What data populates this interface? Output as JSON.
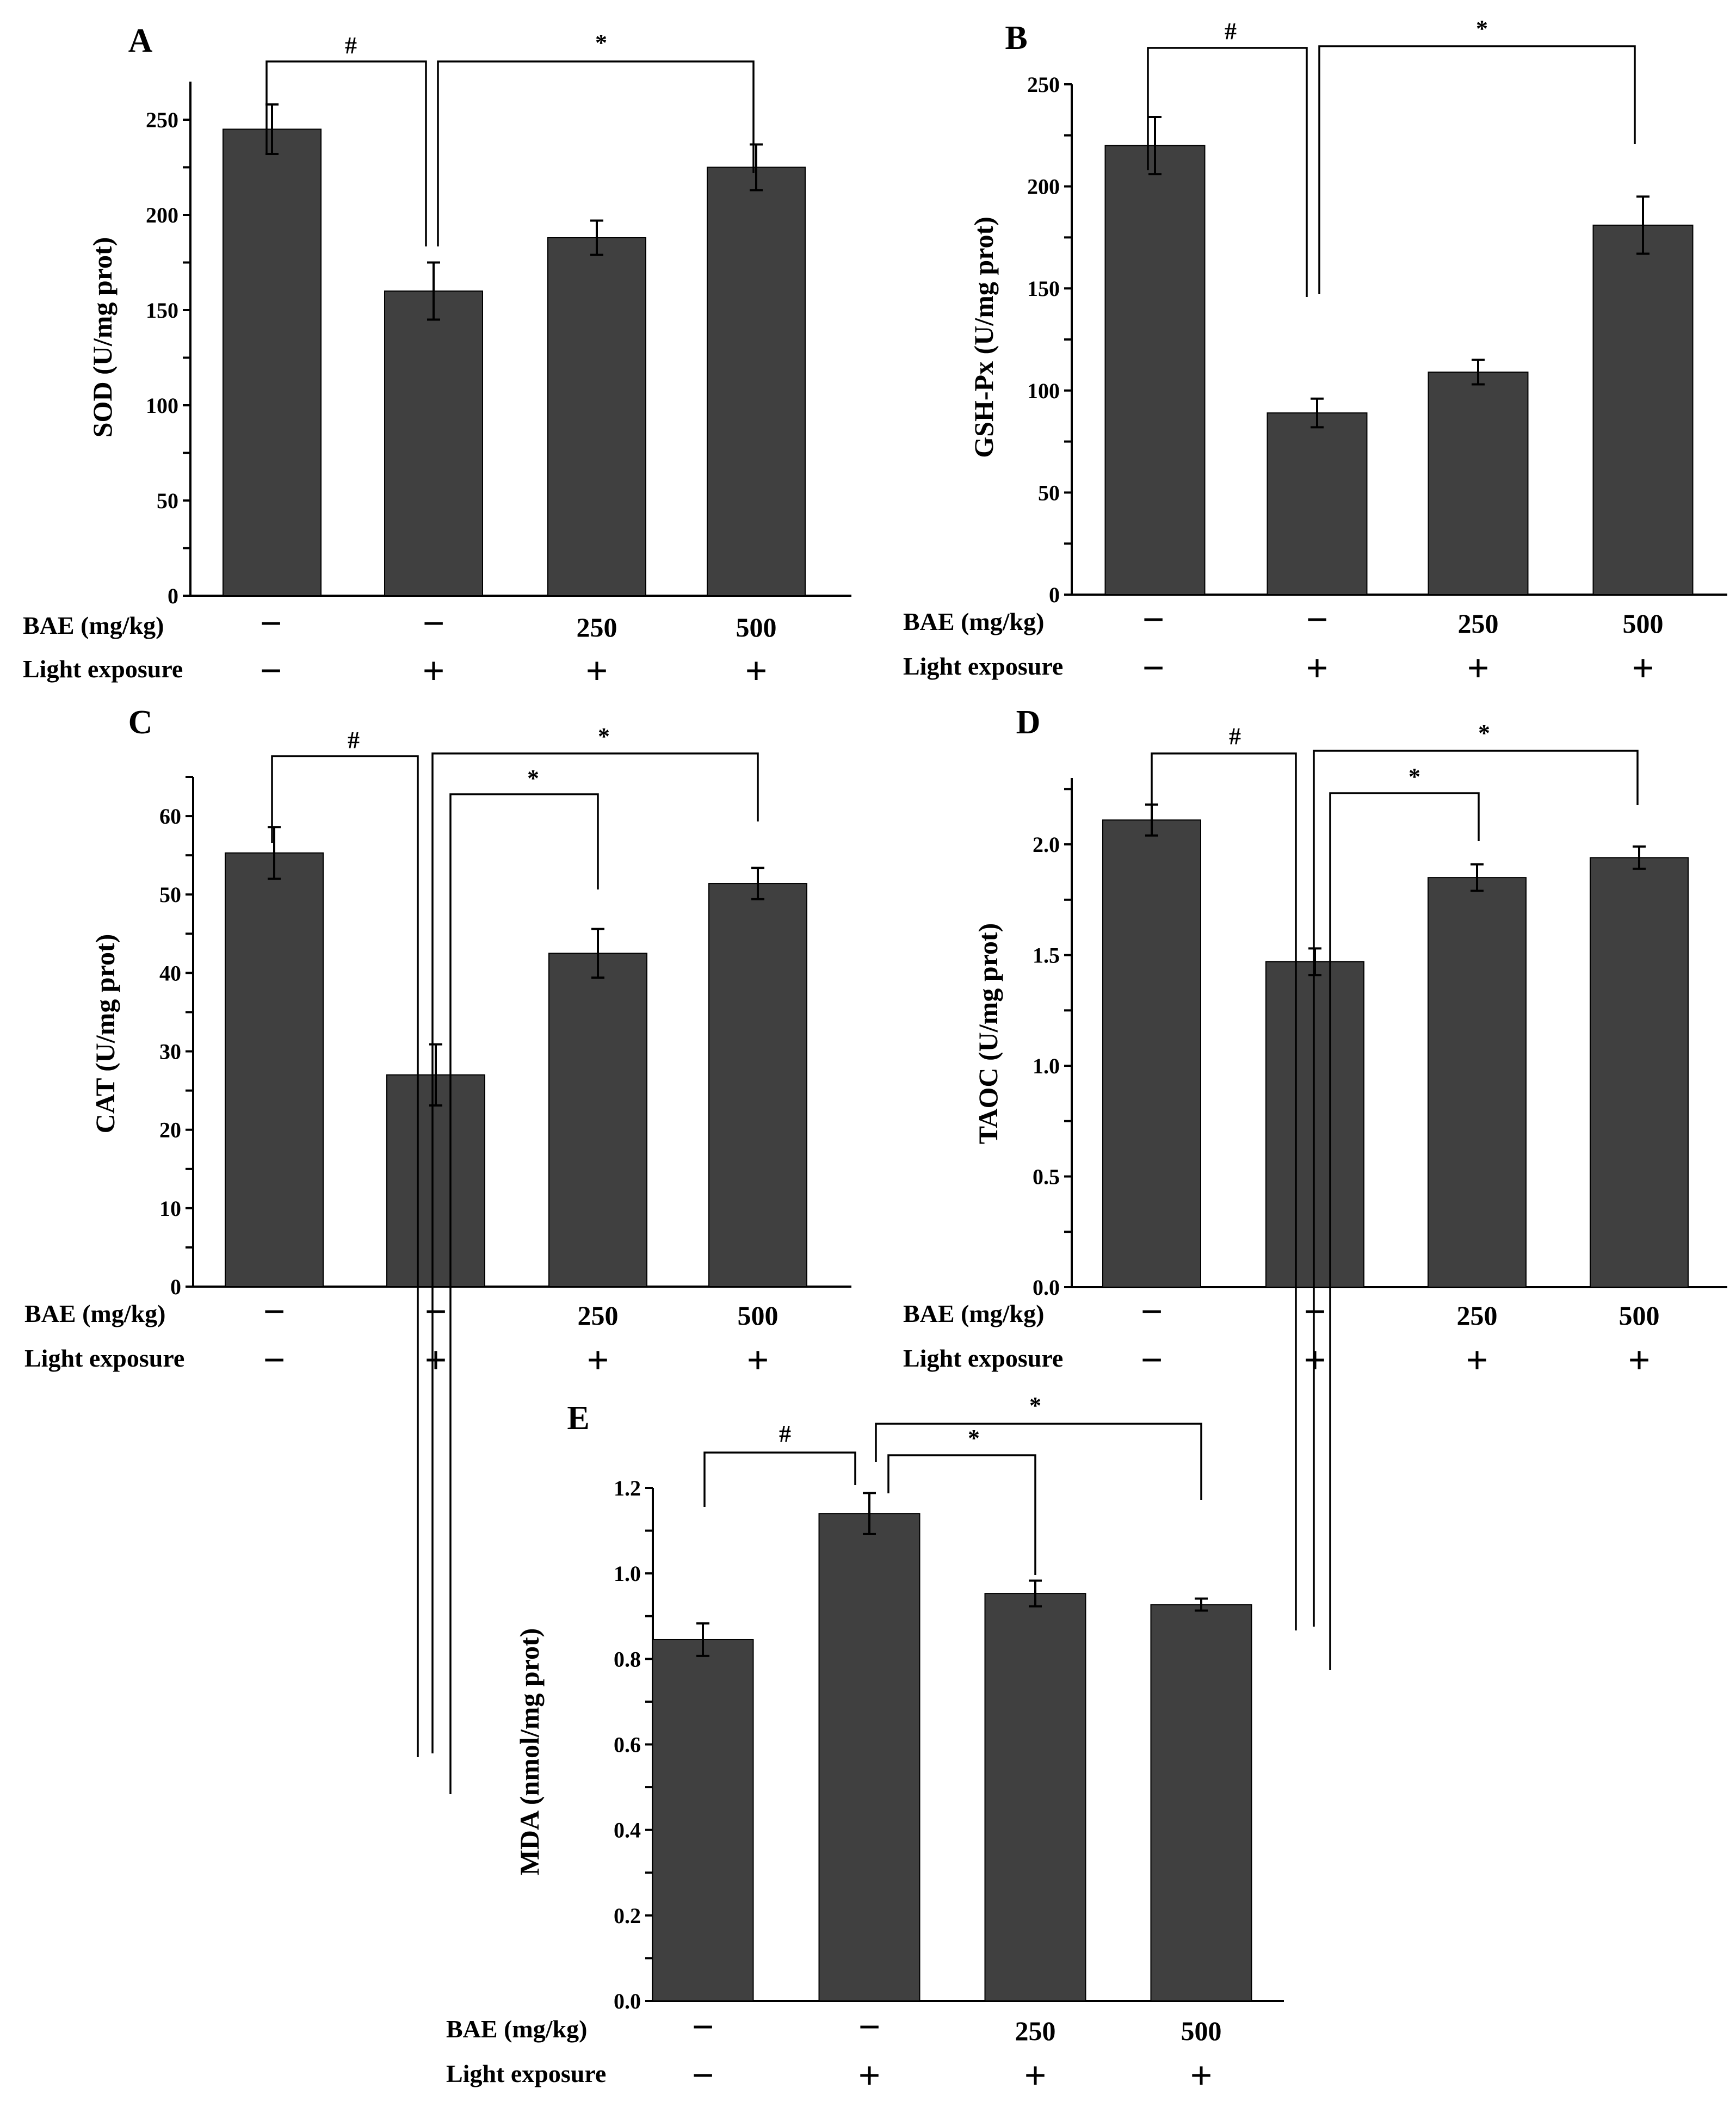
{
  "figure": {
    "row_labels": {
      "dose": "BAE (mg/kg)",
      "light": "Light exposure"
    },
    "group_dose": [
      "−",
      "−",
      "250",
      "500"
    ],
    "group_light": [
      "−",
      "+",
      "+",
      "+"
    ],
    "bar_color": "#404040"
  },
  "chart_data": [
    {
      "panel": "A",
      "type": "bar",
      "title": "",
      "xlabel": "",
      "ylabel": "SOD (U/mg prot)",
      "ylim": [
        0,
        270
      ],
      "yticks": [
        0,
        50,
        100,
        150,
        200,
        250
      ],
      "ytick_labels": [
        "0",
        "50",
        "100",
        "150",
        "200",
        "250"
      ],
      "values": [
        245,
        160,
        188,
        225
      ],
      "errors": [
        13,
        15,
        9,
        12
      ],
      "significance": [
        {
          "from": 0,
          "to": 1,
          "mark": "#"
        },
        {
          "from": 1,
          "to": 3,
          "mark": "*"
        }
      ]
    },
    {
      "panel": "B",
      "type": "bar",
      "title": "",
      "xlabel": "",
      "ylabel": "GSH-Px (U/mg prot)",
      "ylim": [
        0,
        250
      ],
      "yticks": [
        0,
        50,
        100,
        150,
        200,
        250
      ],
      "ytick_labels": [
        "0",
        "50",
        "100",
        "150",
        "200",
        "250"
      ],
      "values": [
        220,
        89,
        109,
        181
      ],
      "errors": [
        14,
        7,
        6,
        14
      ],
      "significance": [
        {
          "from": 0,
          "to": 1,
          "mark": "#"
        },
        {
          "from": 1,
          "to": 3,
          "mark": "*"
        }
      ]
    },
    {
      "panel": "C",
      "type": "bar",
      "title": "",
      "xlabel": "",
      "ylabel": "CAT (U/mg prot)",
      "ylim": [
        0,
        65
      ],
      "yticks": [
        0,
        10,
        20,
        30,
        40,
        50,
        60
      ],
      "ytick_labels": [
        "0",
        "10",
        "20",
        "30",
        "40",
        "50",
        "60"
      ],
      "values": [
        55.3,
        27.0,
        42.5,
        51.4
      ],
      "errors": [
        3.3,
        3.9,
        3.1,
        2.0
      ],
      "significance": [
        {
          "from": 0,
          "to": 1,
          "mark": "#"
        },
        {
          "from": 1,
          "to": 3,
          "mark": "*"
        },
        {
          "from": 1,
          "to": 2,
          "mark": "*"
        }
      ]
    },
    {
      "panel": "D",
      "type": "bar",
      "title": "",
      "xlabel": "",
      "ylabel": "TAOC (U/mg prot)",
      "ylim": [
        0,
        2.3
      ],
      "yticks": [
        0,
        0.5,
        1.0,
        1.5,
        2.0
      ],
      "ytick_labels": [
        "0.0",
        "0.5",
        "1.0",
        "1.5",
        "2.0"
      ],
      "values": [
        2.11,
        1.47,
        1.85,
        1.94
      ],
      "errors": [
        0.07,
        0.06,
        0.06,
        0.05
      ],
      "significance": [
        {
          "from": 0,
          "to": 1,
          "mark": "#"
        },
        {
          "from": 1,
          "to": 3,
          "mark": "*"
        },
        {
          "from": 1,
          "to": 2,
          "mark": "*"
        }
      ]
    },
    {
      "panel": "E",
      "type": "bar",
      "title": "",
      "xlabel": "",
      "ylabel": "MDA (nmol/mg prot)",
      "ylim": [
        0,
        1.2
      ],
      "yticks": [
        0,
        0.2,
        0.4,
        0.6,
        0.8,
        1.0,
        1.2
      ],
      "ytick_labels": [
        "0.0",
        "0.2",
        "0.4",
        "0.6",
        "0.8",
        "1.0",
        "1.2"
      ],
      "values": [
        0.845,
        1.14,
        0.953,
        0.927
      ],
      "errors": [
        0.038,
        0.048,
        0.03,
        0.014
      ],
      "significance": [
        {
          "from": 0,
          "to": 1,
          "mark": "#"
        },
        {
          "from": 1,
          "to": 3,
          "mark": "*"
        },
        {
          "from": 1,
          "to": 2,
          "mark": "*"
        }
      ]
    }
  ]
}
